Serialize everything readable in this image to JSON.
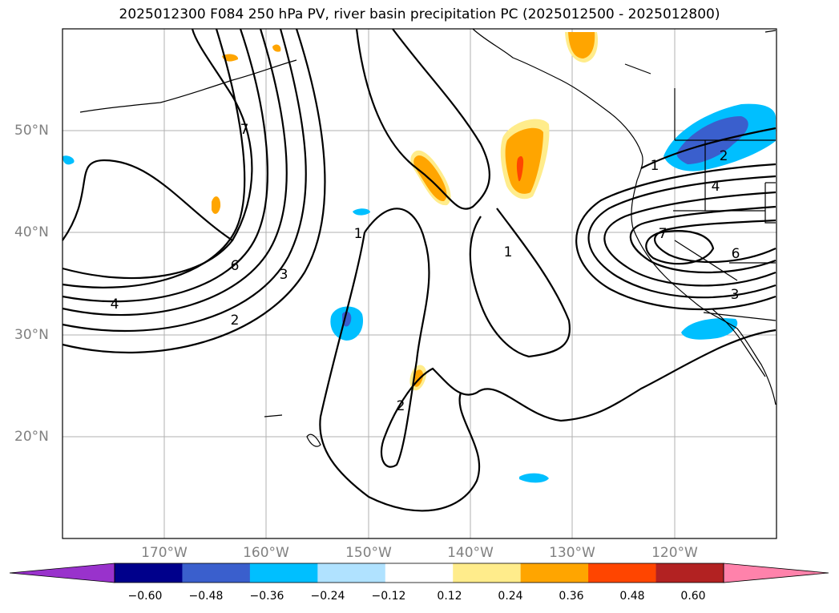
{
  "title": "2025012300 F084 250 hPa PV, river basin precipitation PC (2025012500 - 2025012800)",
  "latitude_labels": [
    "50°N",
    "40°N",
    "30°N",
    "20°N"
  ],
  "longitude_labels": [
    "170°W",
    "160°W",
    "150°W",
    "140°W",
    "130°W",
    "120°W"
  ],
  "contour_labels": [
    "7",
    "6",
    "3",
    "4",
    "2",
    "1",
    "1",
    "2",
    "1",
    "2",
    "4",
    "7",
    "6",
    "3"
  ],
  "colorbar": {
    "ticks": [
      "−0.60",
      "−0.48",
      "−0.36",
      "−0.24",
      "−0.12",
      "0.12",
      "0.24",
      "0.36",
      "0.48",
      "0.60"
    ],
    "colors": [
      "#9932cc",
      "#00008b",
      "#3a5fcd",
      "#00bfff",
      "#b0e2ff",
      "#ffffff",
      "#ffec8b",
      "#ffa500",
      "#ff4500",
      "#b22222",
      "#ff82ab"
    ]
  }
}
